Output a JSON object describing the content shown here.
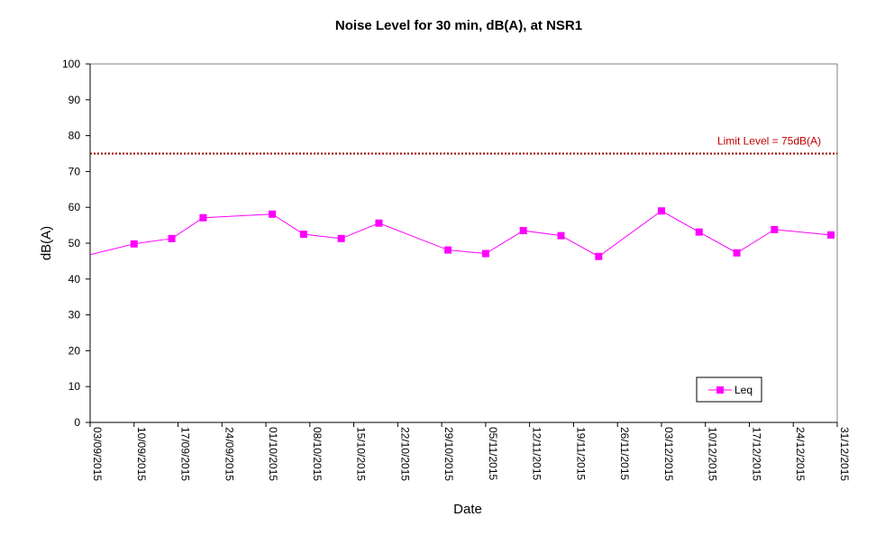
{
  "chart_data": {
    "type": "line",
    "title": "Noise Level for 30 min, dB(A), at NSR1",
    "xlabel": "Date",
    "ylabel": "dB(A)",
    "ylim": [
      0,
      100
    ],
    "yticks": [
      0,
      10,
      20,
      30,
      40,
      50,
      60,
      70,
      80,
      90,
      100
    ],
    "xlim": [
      "03/09/2015",
      "31/12/2015"
    ],
    "xticks": [
      "03/09/2015",
      "10/09/2015",
      "17/09/2015",
      "24/09/2015",
      "01/10/2015",
      "08/10/2015",
      "15/10/2015",
      "22/10/2015",
      "29/10/2015",
      "05/11/2015",
      "12/11/2015",
      "19/11/2015",
      "26/11/2015",
      "03/12/2015",
      "10/12/2015",
      "17/12/2015",
      "24/12/2015",
      "31/12/2015"
    ],
    "grid": false,
    "legend_position": "bottom-right",
    "series": [
      {
        "name": "Leq",
        "color": "#ff00ff",
        "marker": "square",
        "x": [
          "03/09/2015",
          "10/09/2015",
          "16/09/2015",
          "21/09/2015",
          "02/10/2015",
          "07/10/2015",
          "13/10/2015",
          "19/10/2015",
          "30/10/2015",
          "05/11/2015",
          "11/11/2015",
          "17/11/2015",
          "23/11/2015",
          "03/12/2015",
          "09/12/2015",
          "15/12/2015",
          "21/12/2015",
          "30/12/2015"
        ],
        "values": [
          46.8,
          49.8,
          51.3,
          57.1,
          58.1,
          52.5,
          51.3,
          55.6,
          48.1,
          47.1,
          53.5,
          52.1,
          46.3,
          59.0,
          53.1,
          47.3,
          53.8,
          52.3
        ]
      }
    ],
    "reference_line": {
      "value": 75,
      "label": "Limit Level  = 75dB(A)",
      "color": "#990000",
      "style": "dotted"
    }
  }
}
